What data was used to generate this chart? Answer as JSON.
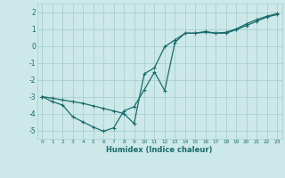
{
  "xlabel": "Humidex (Indice chaleur)",
  "background_color": "#cce8e8",
  "grid_color": "#aad0d0",
  "line_color": "#1a6b6b",
  "line1_y": [
    -3.0,
    -3.3,
    -3.5,
    -4.2,
    -4.5,
    -4.8,
    -5.05,
    -4.85,
    -3.85,
    -3.6,
    -2.6,
    -1.55,
    -2.65,
    0.2,
    0.75,
    0.75,
    0.8,
    0.75,
    0.75,
    0.95,
    1.2,
    1.45,
    1.7,
    1.85
  ],
  "line2_y": [
    -3.0,
    -3.1,
    -3.2,
    -3.3,
    -3.4,
    -3.55,
    -3.7,
    -3.85,
    -4.0,
    -4.6,
    -1.65,
    -1.3,
    -0.05,
    0.35,
    0.75,
    0.75,
    0.85,
    0.75,
    0.8,
    1.0,
    1.3,
    1.55,
    1.75,
    1.9
  ],
  "ylim": [
    -5.5,
    2.5
  ],
  "xlim": [
    -0.5,
    23.5
  ],
  "yticks": [
    -5,
    -4,
    -3,
    -2,
    -1,
    0,
    1,
    2
  ],
  "xticks": [
    0,
    1,
    2,
    3,
    4,
    5,
    6,
    7,
    8,
    9,
    10,
    11,
    12,
    13,
    14,
    15,
    16,
    17,
    18,
    19,
    20,
    21,
    22,
    23
  ],
  "xtick_labels": [
    "0",
    "1",
    "2",
    "3",
    "4",
    "5",
    "6",
    "7",
    "8",
    "9",
    "10",
    "11",
    "12",
    "13",
    "14",
    "15",
    "16",
    "17",
    "18",
    "19",
    "20",
    "21",
    "22",
    "23"
  ]
}
